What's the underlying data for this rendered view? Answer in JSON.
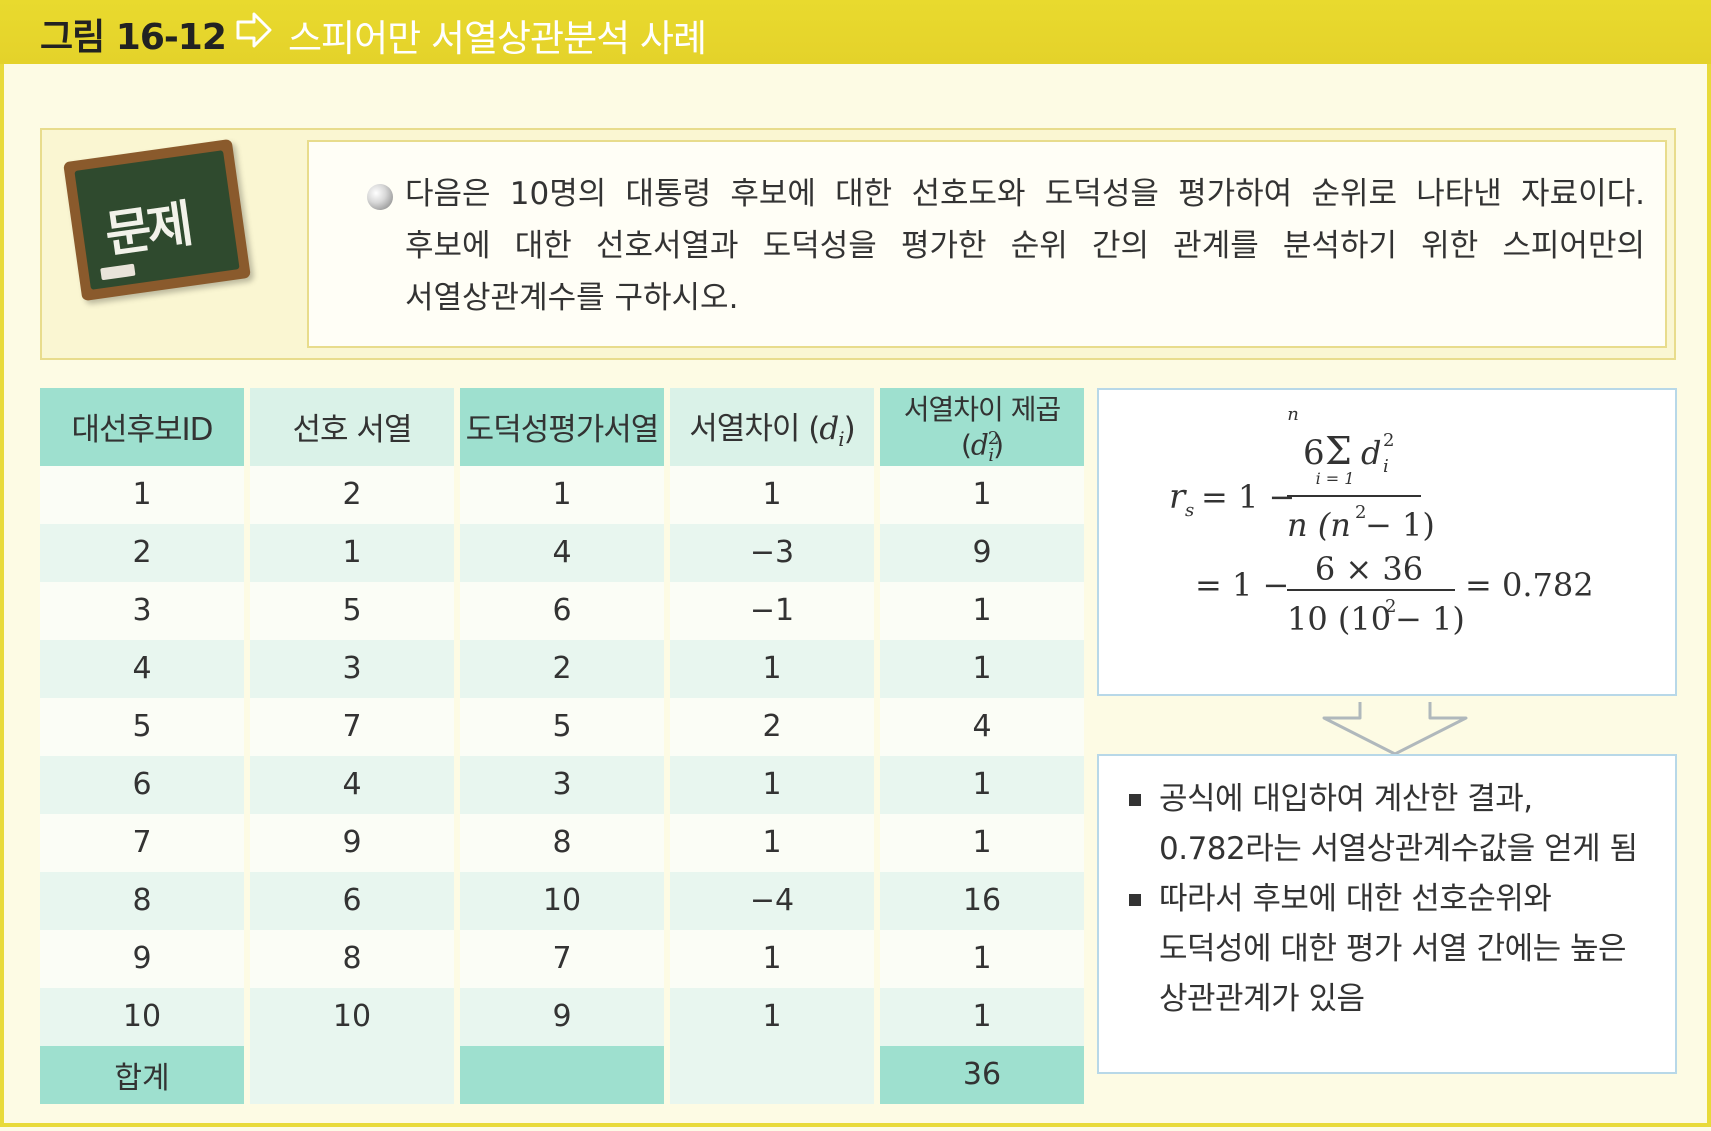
{
  "header": {
    "figure_label": "그림 16-12",
    "title": "스피어만 서열상관분석 사례"
  },
  "problem": {
    "badge": "문제",
    "text": "다음은 10명의 대통령 후보에 대한 선호도와 도덕성을 평가하여 순위로 나타낸 자료이다. 후보에 대한 선호서열과 도덕성을 평가한 순위 간의 관계를 분석하기 위한 스피어만의 서열상관계수를 구하시오."
  },
  "table": {
    "headers": [
      "대선후보ID",
      "선호 서열",
      "도덕성평가서열",
      "서열차이",
      "서열차이 제곱"
    ],
    "header_symbols": [
      "d",
      "i",
      "d",
      "2",
      "i"
    ],
    "rows": [
      [
        "1",
        "2",
        "1",
        "1",
        "1"
      ],
      [
        "2",
        "1",
        "4",
        "−3",
        "9"
      ],
      [
        "3",
        "5",
        "6",
        "−1",
        "1"
      ],
      [
        "4",
        "3",
        "2",
        "1",
        "1"
      ],
      [
        "5",
        "7",
        "5",
        "2",
        "4"
      ],
      [
        "6",
        "4",
        "3",
        "1",
        "1"
      ],
      [
        "7",
        "9",
        "8",
        "1",
        "1"
      ],
      [
        "8",
        "6",
        "10",
        "−4",
        "16"
      ],
      [
        "9",
        "8",
        "7",
        "1",
        "1"
      ],
      [
        "10",
        "10",
        "9",
        "1",
        "1"
      ]
    ],
    "total_label": "합계",
    "total_value": "36"
  },
  "formula": {
    "lhs": "r",
    "lhs_sub": "s",
    "eq1_prefix": "= 1 −",
    "num1_coef": "6",
    "sigma": "Σ",
    "sum_upper": "n",
    "sum_lower": "i = 1",
    "num1_var": "d",
    "num1_sup": "2",
    "num1_sub": "i",
    "den1_a": "n (n",
    "den1_sup": "2",
    "den1_b": " − 1)",
    "eq2_prefix": "= 1 −",
    "num2": "6 × 36",
    "den2_a": "10 (10",
    "den2_sup": "2",
    "den2_b": " − 1)",
    "result": "= 0.782"
  },
  "results": [
    "공식에 대입하여 계산한 결과, 0.782라는 서열상관계수값을 얻게 됨",
    "따라서 후보에 대한 선호순위와 도덕성에 대한 평가 서열 간에는 높은 상관관계가 있음"
  ],
  "colors": {
    "header_bar": "#e6d52c",
    "table_header_dark": "#9ee0cf",
    "table_header_light": "#daf2e8",
    "row_stripe": "#e8f6ef",
    "box_border": "#b8d8e8"
  }
}
